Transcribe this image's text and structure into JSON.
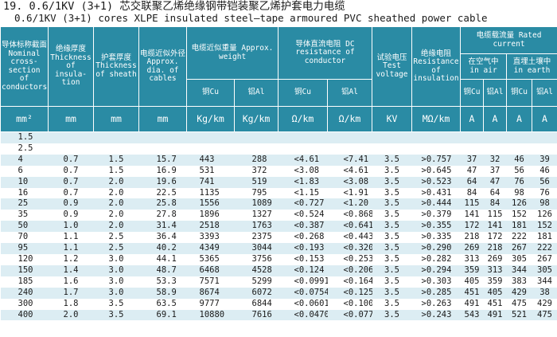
{
  "title_cn": "19. 0.6/1KV (3+1) 芯交联聚乙烯绝缘钢带铠装聚乙烯护套电力电缆",
  "title_en": "0.6/1KV (3+1)   cores XLPE insulated steel—tape armoured PVC sheathed power cable",
  "header": {
    "nominal": "导体标称截面 Nominal cross-section of conductors",
    "insul": "绝缘厚度 Thickness of insula-tion",
    "sheath": "护套厚度 Thickness of sheath",
    "dia": "电缆近似外径 Approx. dia. of cables",
    "weight": "电缆近似重量 Approx. weight",
    "weight_cu": "铜Cu",
    "weight_al": "铝Al",
    "dcres": "导体直流电阻 DC resistance of conductor",
    "dcres_cu": "铜Cu",
    "dcres_al": "铝Al",
    "test": "试验电压 Test voltage",
    "insres": "绝缘电阻 Resistance of insulation",
    "rated": "电缆载流量 Rated current",
    "air": "在空气中 in air",
    "earth": "直埋土壤中 in earth",
    "air_cu": "铜Cu",
    "air_al": "铝Al",
    "earth_cu": "铜Cu",
    "earth_al": "铝Al"
  },
  "units": [
    "mm²",
    "mm",
    "mm",
    "mm",
    "Kg/km",
    "Kg/km",
    "Ω/km",
    "Ω/km",
    "KV",
    "MΩ/km",
    "A",
    "A",
    "A",
    "A"
  ],
  "rows": [
    [
      "1.5",
      "",
      "",
      "",
      "",
      "",
      "",
      "",
      "",
      "",
      "",
      "",
      "",
      ""
    ],
    [
      "2.5",
      "",
      "",
      "",
      "",
      "",
      "",
      "",
      "",
      "",
      "",
      "",
      "",
      ""
    ],
    [
      "4",
      "0.7",
      "1.5",
      "15.7",
      "443",
      "288",
      "<4.61",
      "<7.41",
      "3.5",
      ">0.757",
      "37",
      "32",
      "46",
      "39"
    ],
    [
      "6",
      "0.7",
      "1.5",
      "16.9",
      "531",
      "372",
      "<3.08",
      "<4.61",
      "3.5",
      ">0.645",
      "47",
      "37",
      "56",
      "46"
    ],
    [
      "10",
      "0.7",
      "2.0",
      "19.6",
      "741",
      "519",
      "<1.83",
      "<3.08",
      "3.5",
      ">0.523",
      "64",
      "47",
      "76",
      "56"
    ],
    [
      "16",
      "0.7",
      "2.0",
      "22.5",
      "1135",
      "795",
      "<1.15",
      "<1.91",
      "3.5",
      ">0.431",
      "84",
      "64",
      "98",
      "76"
    ],
    [
      "25",
      "0.9",
      "2.0",
      "25.8",
      "1556",
      "1089",
      "<0.727",
      "<1.20",
      "3.5",
      ">0.444",
      "115",
      "84",
      "126",
      "98"
    ],
    [
      "35",
      "0.9",
      "2.0",
      "27.8",
      "1896",
      "1327",
      "<0.524",
      "<0.868",
      "3.5",
      ">0.379",
      "141",
      "115",
      "152",
      "126"
    ],
    [
      "50",
      "1.0",
      "2.0",
      "31.4",
      "2518",
      "1763",
      "<0.387",
      "<0.641",
      "3.5",
      ">0.355",
      "172",
      "141",
      "181",
      "152"
    ],
    [
      "70",
      "1.1",
      "2.5",
      "36.4",
      "3393",
      "2375",
      "<0.268",
      "<0.443",
      "3.5",
      ">0.335",
      "218",
      "172",
      "222",
      "181"
    ],
    [
      "95",
      "1.1",
      "2.5",
      "40.2",
      "4349",
      "3044",
      "<0.193",
      "<0.320",
      "3.5",
      ">0.290",
      "269",
      "218",
      "267",
      "222"
    ],
    [
      "120",
      "1.2",
      "3.0",
      "44.1",
      "5365",
      "3756",
      "<0.153",
      "<0.253",
      "3.5",
      ">0.282",
      "313",
      "269",
      "305",
      "267"
    ],
    [
      "150",
      "1.4",
      "3.0",
      "48.7",
      "6468",
      "4528",
      "<0.124",
      "<0.206",
      "3.5",
      ">0.294",
      "359",
      "313",
      "344",
      "305"
    ],
    [
      "185",
      "1.6",
      "3.0",
      "53.3",
      "7571",
      "5299",
      "<0.0991",
      "<0.164",
      "3.5",
      ">0.303",
      "405",
      "359",
      "383",
      "344"
    ],
    [
      "240",
      "1.7",
      "3.0",
      "58.9",
      "8674",
      "6072",
      "<0.0754",
      "<0.125",
      "3.5",
      ">0.285",
      "451",
      "405",
      "429",
      "38"
    ],
    [
      "300",
      "1.8",
      "3.5",
      "63.5",
      "9777",
      "6844",
      "<0.0601",
      "<0.100",
      "3.5",
      ">0.263",
      "491",
      "451",
      "475",
      "429"
    ],
    [
      "400",
      "2.0",
      "3.5",
      "69.1",
      "10880",
      "7616",
      "<0.0470",
      "<0.0778",
      "3.5",
      ">0.243",
      "543",
      "491",
      "521",
      "475"
    ]
  ],
  "colors": {
    "header_bg": "#2a8ba4",
    "row_alt": "#dcedf3"
  }
}
